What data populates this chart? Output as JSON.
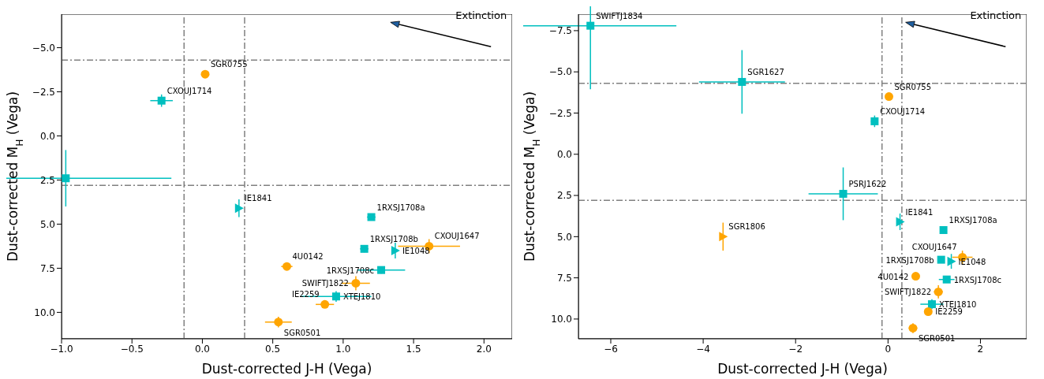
{
  "chart_data": [
    {
      "type": "scatter",
      "xlabel": "Dust-corrected J-H (Vega)",
      "ylabel": "Dust-corrected M$_{H}$ (Vega)",
      "xlim": [
        -1.0,
        2.2
      ],
      "ylim": [
        11.5,
        -6.9
      ],
      "xticks": [
        {
          "value": -1.0,
          "label": "−1.0"
        },
        {
          "value": -0.5,
          "label": "−0.5"
        },
        {
          "value": 0,
          "label": "0.0"
        },
        {
          "value": 0.5,
          "label": "0.5"
        },
        {
          "value": 1.0,
          "label": "1.0"
        },
        {
          "value": 1.5,
          "label": "1.5"
        },
        {
          "value": 2.0,
          "label": "2.0"
        }
      ],
      "yticks": [
        {
          "value": -5.0,
          "label": "−5.0"
        },
        {
          "value": -2.5,
          "label": "−2.5"
        },
        {
          "value": 0,
          "label": "0.0"
        },
        {
          "value": 2.5,
          "label": "2.5"
        },
        {
          "value": 5.0,
          "label": "5.0"
        },
        {
          "value": 7.5,
          "label": "7.5"
        },
        {
          "value": 10.0,
          "label": "10.0"
        }
      ],
      "ref_lines": [
        {
          "axis": "y",
          "value": -4.3,
          "color": "#808080",
          "line_style": "dashed"
        },
        {
          "axis": "y",
          "value": 2.8,
          "color": "#808080",
          "line_style": "dashed"
        },
        {
          "axis": "x",
          "value": -0.13,
          "color": "#808080",
          "line_style": "dashed"
        },
        {
          "axis": "x",
          "value": 0.3,
          "color": "#808080",
          "line_style": "dashed"
        }
      ],
      "annotations": [
        "Extinction"
      ],
      "series": [
        {
          "name": "SGR0755",
          "color": "#ffa500",
          "marker": "circle",
          "x": [
            0.02
          ],
          "values": [
            -3.5
          ]
        },
        {
          "name": "CXOUJ1714",
          "color": "#00bfbf",
          "marker": "square",
          "x": [
            -0.29
          ],
          "values": [
            -2.0
          ],
          "xerrors": [
            0.08
          ],
          "errors": [
            0.35
          ]
        },
        {
          "color": "#00bfbf",
          "marker": "square",
          "x": [
            -0.97
          ],
          "values": [
            2.4
          ],
          "xerrors": [
            0.75
          ],
          "errors": [
            1.6
          ]
        },
        {
          "name": "IE1841",
          "color": "#00bfbf",
          "marker": "triangle",
          "x": [
            0.26
          ],
          "values": [
            4.1
          ],
          "errors": [
            0.5
          ]
        },
        {
          "name": "1RXSJ1708a",
          "color": "#00bfbf",
          "marker": "square",
          "x": [
            1.2
          ],
          "values": [
            4.6
          ],
          "xerrors": [
            0.03
          ],
          "errors": [
            0.2
          ]
        },
        {
          "name": "1RXSJ1708b",
          "color": "#00bfbf",
          "marker": "square",
          "x": [
            1.15
          ],
          "values": [
            6.4
          ],
          "xerrors": [
            0.03
          ],
          "errors": [
            0.2
          ]
        },
        {
          "name": "IE1048",
          "color": "#00bfbf",
          "marker": "triangle",
          "x": [
            1.37
          ],
          "values": [
            6.5
          ],
          "errors": [
            0.45
          ]
        },
        {
          "name": "CXOUJ1647",
          "color": "#ffa500",
          "marker": "circle",
          "x": [
            1.61
          ],
          "values": [
            6.25
          ],
          "xerrors": [
            0.22
          ],
          "errors": [
            0.4
          ]
        },
        {
          "name": "4U0142",
          "color": "#ffa500",
          "marker": "circle",
          "x": [
            0.6
          ],
          "values": [
            7.4
          ],
          "xerrors": [
            0.04
          ],
          "errors": [
            0.2
          ]
        },
        {
          "name": "1RXSJ1708c",
          "color": "#00bfbf",
          "marker": "square",
          "x": [
            1.27
          ],
          "values": [
            7.6
          ],
          "xerrors": [
            0.17
          ],
          "errors": [
            0.2
          ]
        },
        {
          "name": "SWIFTJ1822",
          "color": "#ffa500",
          "marker": "circle",
          "x": [
            1.09
          ],
          "values": [
            8.35
          ],
          "xerrors": [
            0.1
          ],
          "errors": [
            0.4
          ]
        },
        {
          "name": "XTEJ1810",
          "color": "#00bfbf",
          "marker": "square",
          "x": [
            0.95
          ],
          "values": [
            9.1
          ],
          "xerrors": [
            0.25
          ],
          "errors": [
            0.3
          ]
        },
        {
          "name": "IE2259",
          "color": "#ffa500",
          "marker": "circle",
          "x": [
            0.87
          ],
          "values": [
            9.55
          ],
          "xerrors": [
            0.065
          ]
        },
        {
          "name": "SGR0501",
          "color": "#ffa500",
          "marker": "circle",
          "x": [
            0.54
          ],
          "values": [
            10.55
          ],
          "xerrors": [
            0.095
          ],
          "errors": [
            0.3
          ]
        }
      ]
    },
    {
      "type": "scatter",
      "xlabel": "Dust-corrected J-H (Vega)",
      "ylabel": "Dust-corrected M$_{H}$ (Vega)",
      "xlim": [
        -6.7,
        3.0
      ],
      "ylim": [
        11.2,
        -8.5
      ],
      "xticks": [
        {
          "value": -6,
          "label": "−6"
        },
        {
          "value": -4,
          "label": "−4"
        },
        {
          "value": -2,
          "label": "−2"
        },
        0,
        2
      ],
      "yticks": [
        {
          "value": -7.5,
          "label": "−7.5"
        },
        {
          "value": -5.0,
          "label": "−5.0"
        },
        {
          "value": -2.5,
          "label": "−2.5"
        },
        {
          "value": 0,
          "label": "0.0"
        },
        {
          "value": 2.5,
          "label": "2.5"
        },
        {
          "value": 5.0,
          "label": "5.0"
        },
        {
          "value": 7.5,
          "label": "7.5"
        },
        {
          "value": 10.0,
          "label": "10.0"
        }
      ],
      "ref_lines": [
        {
          "axis": "y",
          "value": -4.3,
          "color": "#808080",
          "line_style": "dashed"
        },
        {
          "axis": "y",
          "value": 2.8,
          "color": "#808080",
          "line_style": "dashed"
        },
        {
          "axis": "x",
          "value": -0.13,
          "color": "#808080",
          "line_style": "dashed"
        },
        {
          "axis": "x",
          "value": 0.3,
          "color": "#808080",
          "line_style": "dashed"
        }
      ],
      "annotations": [
        "Extinction"
      ],
      "series": [
        {
          "name": "SWIFTJ1834",
          "color": "#00bfbf",
          "marker": "square",
          "x": [
            -6.44
          ],
          "values": [
            -7.8
          ],
          "xerrors": [
            1.86
          ],
          "errors": [
            3.85
          ]
        },
        {
          "name": "SGR1627",
          "color": "#00bfbf",
          "marker": "square",
          "x": [
            -3.16
          ],
          "values": [
            -4.39
          ],
          "xerrors": [
            0.93
          ],
          "errors": [
            1.93
          ]
        },
        {
          "name": "SGR0755",
          "color": "#ffa500",
          "marker": "circle",
          "x": [
            0.02
          ],
          "values": [
            -3.5
          ]
        },
        {
          "name": "CXOUJ1714",
          "color": "#00bfbf",
          "marker": "square",
          "x": [
            -0.29
          ],
          "values": [
            -2.0
          ],
          "xerrors": [
            0.08
          ],
          "errors": [
            0.35
          ]
        },
        {
          "name": "PSRJ1622",
          "color": "#00bfbf",
          "marker": "square",
          "x": [
            -0.97
          ],
          "values": [
            2.4
          ],
          "xerrors": [
            0.75
          ],
          "errors": [
            1.6
          ]
        },
        {
          "name": "SGR1806",
          "color": "#ffa500",
          "marker": "triangle",
          "x": [
            -3.57
          ],
          "values": [
            5.0
          ],
          "errors": [
            0.85
          ]
        },
        {
          "name": "IE1841",
          "color": "#00bfbf",
          "marker": "triangle",
          "x": [
            0.26
          ],
          "values": [
            4.1
          ],
          "errors": [
            0.5
          ]
        },
        {
          "name": "1RXSJ1708a",
          "color": "#00bfbf",
          "marker": "square",
          "x": [
            1.2
          ],
          "values": [
            4.6
          ],
          "xerrors": [
            0.03
          ],
          "errors": [
            0.2
          ]
        },
        {
          "name": "1RXSJ1708b",
          "color": "#00bfbf",
          "marker": "square",
          "x": [
            1.15
          ],
          "values": [
            6.4
          ],
          "xerrors": [
            0.03
          ],
          "errors": [
            0.2
          ]
        },
        {
          "name": "IE1048",
          "color": "#00bfbf",
          "marker": "triangle",
          "x": [
            1.37
          ],
          "values": [
            6.5
          ],
          "errors": [
            0.45
          ]
        },
        {
          "name": "CXOUJ1647",
          "color": "#ffa500",
          "marker": "circle",
          "x": [
            1.61
          ],
          "values": [
            6.25
          ],
          "xerrors": [
            0.22
          ],
          "errors": [
            0.4
          ]
        },
        {
          "name": "4U0142",
          "color": "#ffa500",
          "marker": "circle",
          "x": [
            0.6
          ],
          "values": [
            7.4
          ],
          "xerrors": [
            0.04
          ],
          "errors": [
            0.2
          ]
        },
        {
          "name": "1RXSJ1708c",
          "color": "#00bfbf",
          "marker": "square",
          "x": [
            1.27
          ],
          "values": [
            7.6
          ],
          "xerrors": [
            0.17
          ],
          "errors": [
            0.2
          ]
        },
        {
          "name": "SWIFTJ1822",
          "color": "#ffa500",
          "marker": "circle",
          "x": [
            1.09
          ],
          "values": [
            8.35
          ],
          "xerrors": [
            0.1
          ],
          "errors": [
            0.4
          ]
        },
        {
          "name": "XTEJ1810",
          "color": "#00bfbf",
          "marker": "square",
          "x": [
            0.95
          ],
          "values": [
            9.1
          ],
          "xerrors": [
            0.25
          ],
          "errors": [
            0.3
          ]
        },
        {
          "name": "IE2259",
          "color": "#ffa500",
          "marker": "circle",
          "x": [
            0.87
          ],
          "values": [
            9.55
          ],
          "xerrors": [
            0.065
          ]
        },
        {
          "name": "SGR0501",
          "color": "#ffa500",
          "marker": "circle",
          "x": [
            0.54
          ],
          "values": [
            10.55
          ],
          "xerrors": [
            0.095
          ],
          "errors": [
            0.3
          ]
        }
      ]
    }
  ]
}
